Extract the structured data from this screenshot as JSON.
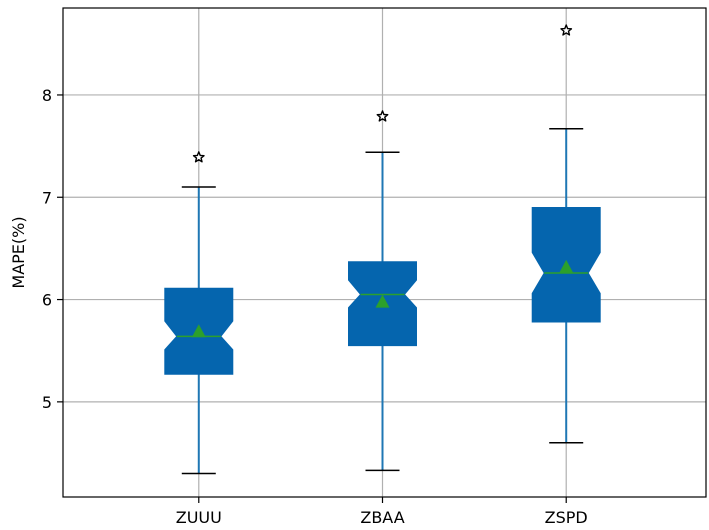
{
  "chart_data": {
    "type": "box",
    "ylabel": "MAPE(%)",
    "xlabel": "",
    "ylim": [
      4.07,
      8.85
    ],
    "yticks": [
      5,
      6,
      7,
      8
    ],
    "ytick_labels": [
      "5",
      "6",
      "7",
      "8"
    ],
    "grid": true,
    "notched": true,
    "show_means": true,
    "categories": [
      "ZUUU",
      "ZBAA",
      "ZSPD"
    ],
    "boxes": [
      {
        "label": "ZUUU",
        "whisker_low": 4.3,
        "q1": 5.27,
        "median": 5.64,
        "q3": 6.11,
        "whisker_high": 7.1,
        "mean": 5.68,
        "notch_low": 5.51,
        "notch_high": 5.79,
        "outliers": [
          7.39
        ]
      },
      {
        "label": "ZBAA",
        "whisker_low": 4.33,
        "q1": 5.55,
        "median": 6.05,
        "q3": 6.37,
        "whisker_high": 7.44,
        "mean": 5.97,
        "notch_low": 5.92,
        "notch_high": 6.19,
        "outliers": [
          7.79
        ]
      },
      {
        "label": "ZSPD",
        "whisker_low": 4.6,
        "q1": 5.78,
        "median": 6.26,
        "q3": 6.9,
        "whisker_high": 7.67,
        "mean": 6.31,
        "notch_low": 6.06,
        "notch_high": 6.46,
        "outliers": [
          8.63
        ]
      }
    ],
    "colors": {
      "box_fill": "#0565ae",
      "whisker": "#1f77b4",
      "cap": "#000000",
      "median": "#2ca02c",
      "mean_marker": "#2ca02c",
      "grid": "#b0b0b0",
      "outlier_edge": "#000000"
    },
    "mean_marker": "triangle",
    "outlier_marker": "star"
  }
}
